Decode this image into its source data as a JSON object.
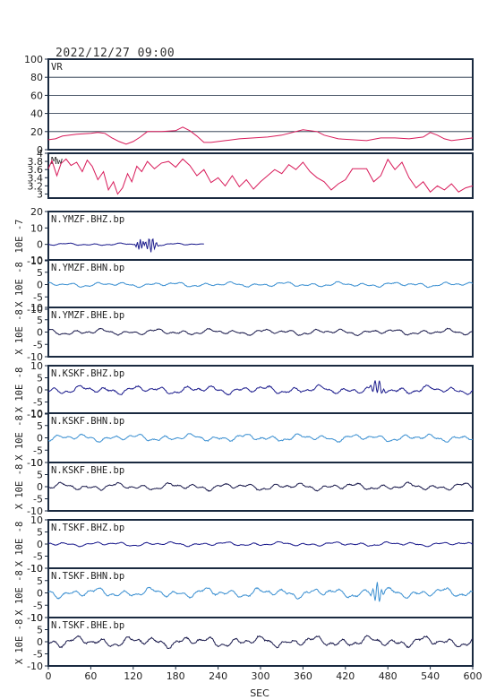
{
  "header": {
    "datetime": "2022/12/27 09:00"
  },
  "chart_data": {
    "type": "line",
    "xlabel": "SEC",
    "xlim": [
      0,
      600
    ],
    "xticks": [
      0,
      60,
      120,
      180,
      240,
      300,
      360,
      420,
      480,
      540,
      600
    ],
    "panels": [
      {
        "title": "VR",
        "ylim": [
          0,
          100
        ],
        "yticks": [
          0,
          20,
          40,
          60,
          80,
          100
        ],
        "grid": true,
        "color": "#d81b5a",
        "style": "step",
        "series": [
          [
            0,
            11
          ],
          [
            10,
            12
          ],
          [
            20,
            15
          ],
          [
            40,
            17
          ],
          [
            60,
            18
          ],
          [
            70,
            19
          ],
          [
            80,
            18
          ],
          [
            90,
            13
          ],
          [
            100,
            9
          ],
          [
            110,
            6
          ],
          [
            120,
            9
          ],
          [
            130,
            14
          ],
          [
            140,
            20
          ],
          [
            160,
            20
          ],
          [
            180,
            21
          ],
          [
            190,
            25
          ],
          [
            200,
            21
          ],
          [
            210,
            15
          ],
          [
            220,
            8
          ],
          [
            230,
            8
          ],
          [
            250,
            10
          ],
          [
            270,
            12
          ],
          [
            290,
            13
          ],
          [
            310,
            14
          ],
          [
            330,
            16
          ],
          [
            360,
            22
          ],
          [
            380,
            20
          ],
          [
            390,
            16
          ],
          [
            410,
            12
          ],
          [
            430,
            11
          ],
          [
            450,
            10
          ],
          [
            470,
            13
          ],
          [
            490,
            13
          ],
          [
            510,
            12
          ],
          [
            530,
            14
          ],
          [
            540,
            19
          ],
          [
            550,
            16
          ],
          [
            560,
            12
          ],
          [
            570,
            10
          ],
          [
            580,
            11
          ],
          [
            590,
            12
          ],
          [
            600,
            13
          ]
        ]
      },
      {
        "title": "Mw",
        "ylim": [
          2.9,
          4.0
        ],
        "yticks": [
          3.0,
          3.2,
          3.4,
          3.6,
          3.8,
          4.0
        ],
        "grid": false,
        "color": "#d81b5a",
        "style": "step",
        "series": [
          [
            0,
            3.62
          ],
          [
            5,
            3.82
          ],
          [
            12,
            3.45
          ],
          [
            18,
            3.75
          ],
          [
            25,
            3.86
          ],
          [
            32,
            3.7
          ],
          [
            40,
            3.78
          ],
          [
            48,
            3.55
          ],
          [
            55,
            3.83
          ],
          [
            62,
            3.68
          ],
          [
            70,
            3.35
          ],
          [
            78,
            3.55
          ],
          [
            85,
            3.1
          ],
          [
            92,
            3.3
          ],
          [
            98,
            3.0
          ],
          [
            105,
            3.15
          ],
          [
            112,
            3.5
          ],
          [
            118,
            3.3
          ],
          [
            125,
            3.68
          ],
          [
            132,
            3.55
          ],
          [
            140,
            3.8
          ],
          [
            150,
            3.62
          ],
          [
            160,
            3.76
          ],
          [
            170,
            3.8
          ],
          [
            180,
            3.66
          ],
          [
            190,
            3.86
          ],
          [
            200,
            3.7
          ],
          [
            210,
            3.45
          ],
          [
            220,
            3.6
          ],
          [
            230,
            3.28
          ],
          [
            240,
            3.4
          ],
          [
            250,
            3.2
          ],
          [
            260,
            3.45
          ],
          [
            270,
            3.18
          ],
          [
            280,
            3.35
          ],
          [
            290,
            3.12
          ],
          [
            300,
            3.3
          ],
          [
            310,
            3.45
          ],
          [
            320,
            3.6
          ],
          [
            330,
            3.5
          ],
          [
            340,
            3.72
          ],
          [
            350,
            3.6
          ],
          [
            360,
            3.78
          ],
          [
            370,
            3.55
          ],
          [
            380,
            3.4
          ],
          [
            390,
            3.3
          ],
          [
            400,
            3.1
          ],
          [
            410,
            3.25
          ],
          [
            420,
            3.35
          ],
          [
            430,
            3.62
          ],
          [
            440,
            3.62
          ],
          [
            450,
            3.62
          ],
          [
            460,
            3.3
          ],
          [
            470,
            3.45
          ],
          [
            480,
            3.85
          ],
          [
            490,
            3.6
          ],
          [
            500,
            3.78
          ],
          [
            510,
            3.4
          ],
          [
            520,
            3.15
          ],
          [
            530,
            3.3
          ],
          [
            540,
            3.05
          ],
          [
            550,
            3.2
          ],
          [
            560,
            3.1
          ],
          [
            570,
            3.25
          ],
          [
            580,
            3.05
          ],
          [
            590,
            3.15
          ],
          [
            600,
            3.2
          ]
        ]
      },
      {
        "title": "N.YMZF.BHZ.bp",
        "ylabel": "10E -7",
        "ylim": [
          -10,
          20
        ],
        "yticks": [
          -10,
          0,
          10,
          20
        ],
        "grid": false,
        "color": "#1a1a8c",
        "style": "wave",
        "amp": 0.6,
        "seed": 1,
        "end": 220,
        "events": [
          [
            130,
            3.2,
            4,
            1.5
          ],
          [
            145,
            -4.5,
            5,
            1.2
          ]
        ]
      },
      {
        "title": "N.YMZF.BHN.bp",
        "ylabel": "X 10E -8",
        "ylim": [
          -10,
          10
        ],
        "yticks": [
          -10,
          -5,
          0,
          5,
          10
        ],
        "grid": false,
        "color": "#3a8fd1",
        "style": "wave",
        "amp": 0.8,
        "seed": 2,
        "events": []
      },
      {
        "title": "N.YMZF.BHE.bp",
        "ylabel": "X 10E -8",
        "ylim": [
          -10,
          10
        ],
        "yticks": [
          -10,
          -5,
          0,
          5,
          10
        ],
        "grid": false,
        "color": "#1a1a4c",
        "style": "wave",
        "amp": 1.0,
        "seed": 3,
        "events": []
      },
      {
        "title": "N.KSKF.BHZ.bp",
        "ylabel": "X 10E -8",
        "ylim": [
          -10,
          10
        ],
        "yticks": [
          -10,
          -5,
          0,
          5,
          10
        ],
        "grid": false,
        "color": "#1a1a8c",
        "style": "wave",
        "amp": 1.4,
        "seed": 4,
        "events": [
          [
            465,
            -3,
            6,
            1.0
          ]
        ]
      },
      {
        "title": "N.KSKF.BHN.bp",
        "ylabel": "X 10E -8",
        "ylim": [
          -10,
          10
        ],
        "yticks": [
          -10,
          -5,
          0,
          5,
          10
        ],
        "grid": false,
        "color": "#3a8fd1",
        "style": "wave",
        "amp": 1.2,
        "seed": 5,
        "events": []
      },
      {
        "title": "N.KSKF.BHE.bp",
        "ylabel": "X 10E -8",
        "ylim": [
          -10,
          10
        ],
        "yticks": [
          -10,
          -5,
          0,
          5,
          10
        ],
        "grid": false,
        "color": "#1a1a4c",
        "style": "wave",
        "amp": 1.2,
        "seed": 6,
        "events": []
      },
      {
        "title": "N.TSKF.BHZ.bp",
        "ylabel": "X 10E -8",
        "ylim": [
          -10,
          10
        ],
        "yticks": [
          -10,
          -5,
          0,
          5,
          10
        ],
        "grid": false,
        "color": "#1a1a8c",
        "style": "wave",
        "amp": 0.7,
        "seed": 7,
        "events": []
      },
      {
        "title": "N.TSKF.BHN.bp",
        "ylabel": "X 10E -8",
        "ylim": [
          -10,
          10
        ],
        "yticks": [
          -10,
          -5,
          0,
          5,
          10
        ],
        "grid": false,
        "color": "#3a8fd1",
        "style": "wave",
        "amp": 1.6,
        "seed": 8,
        "events": [
          [
            465,
            4,
            5,
            1.0
          ]
        ]
      },
      {
        "title": "N.TSKF.BHE.bp",
        "ylabel": "X 10E -8",
        "ylim": [
          -10,
          10
        ],
        "yticks": [
          -10,
          -5,
          0,
          5,
          10
        ],
        "grid": false,
        "color": "#1a1a4c",
        "style": "wave",
        "amp": 1.8,
        "seed": 9,
        "events": []
      }
    ]
  }
}
